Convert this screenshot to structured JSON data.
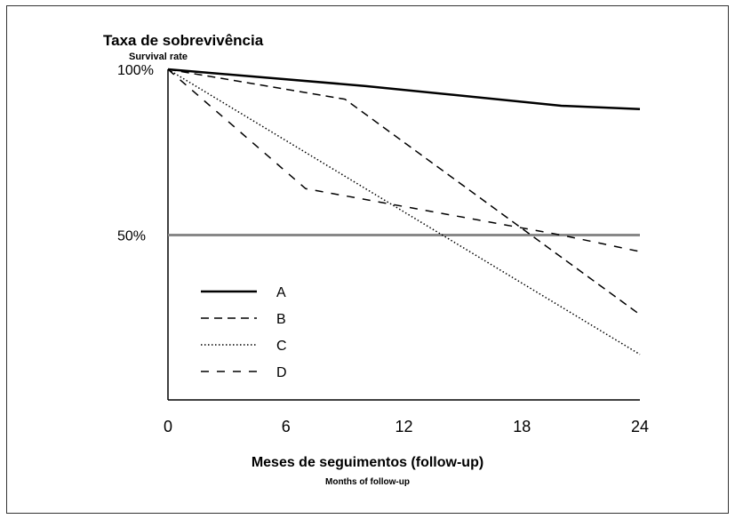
{
  "chart_data": {
    "type": "line",
    "ylabel": "Taxa de sobrevivência",
    "ylabel_sub": "Survival rate",
    "xlabel": "Meses de seguimentos (follow-up)",
    "xlabel_sub": "Months of follow-up",
    "xlim": [
      0,
      24
    ],
    "ylim": [
      0,
      100
    ],
    "x_ticks": [
      "0",
      "6",
      "12",
      "18",
      "24"
    ],
    "x_tick_values": [
      0,
      6,
      12,
      18,
      24
    ],
    "y_ticks": [
      "100%",
      "50%"
    ],
    "y_tick_values": [
      100,
      50
    ],
    "reference_line": {
      "y": 50,
      "color": "#888888"
    },
    "legend_position": "bottom-left",
    "series": [
      {
        "name": "A",
        "style": "solid",
        "color": "#000000",
        "points": [
          [
            0,
            100
          ],
          [
            10,
            95
          ],
          [
            20,
            89
          ],
          [
            24,
            88
          ]
        ]
      },
      {
        "name": "B",
        "style": "dashed",
        "color": "#000000",
        "points": [
          [
            0,
            100
          ],
          [
            9,
            91
          ],
          [
            24,
            26
          ]
        ]
      },
      {
        "name": "C",
        "style": "dotted",
        "color": "#000000",
        "points": [
          [
            0,
            100
          ],
          [
            24,
            14
          ]
        ]
      },
      {
        "name": "D",
        "style": "dashed-wide",
        "color": "#000000",
        "points": [
          [
            0,
            100
          ],
          [
            7,
            64
          ],
          [
            20,
            50
          ],
          [
            24,
            45
          ]
        ]
      }
    ]
  }
}
